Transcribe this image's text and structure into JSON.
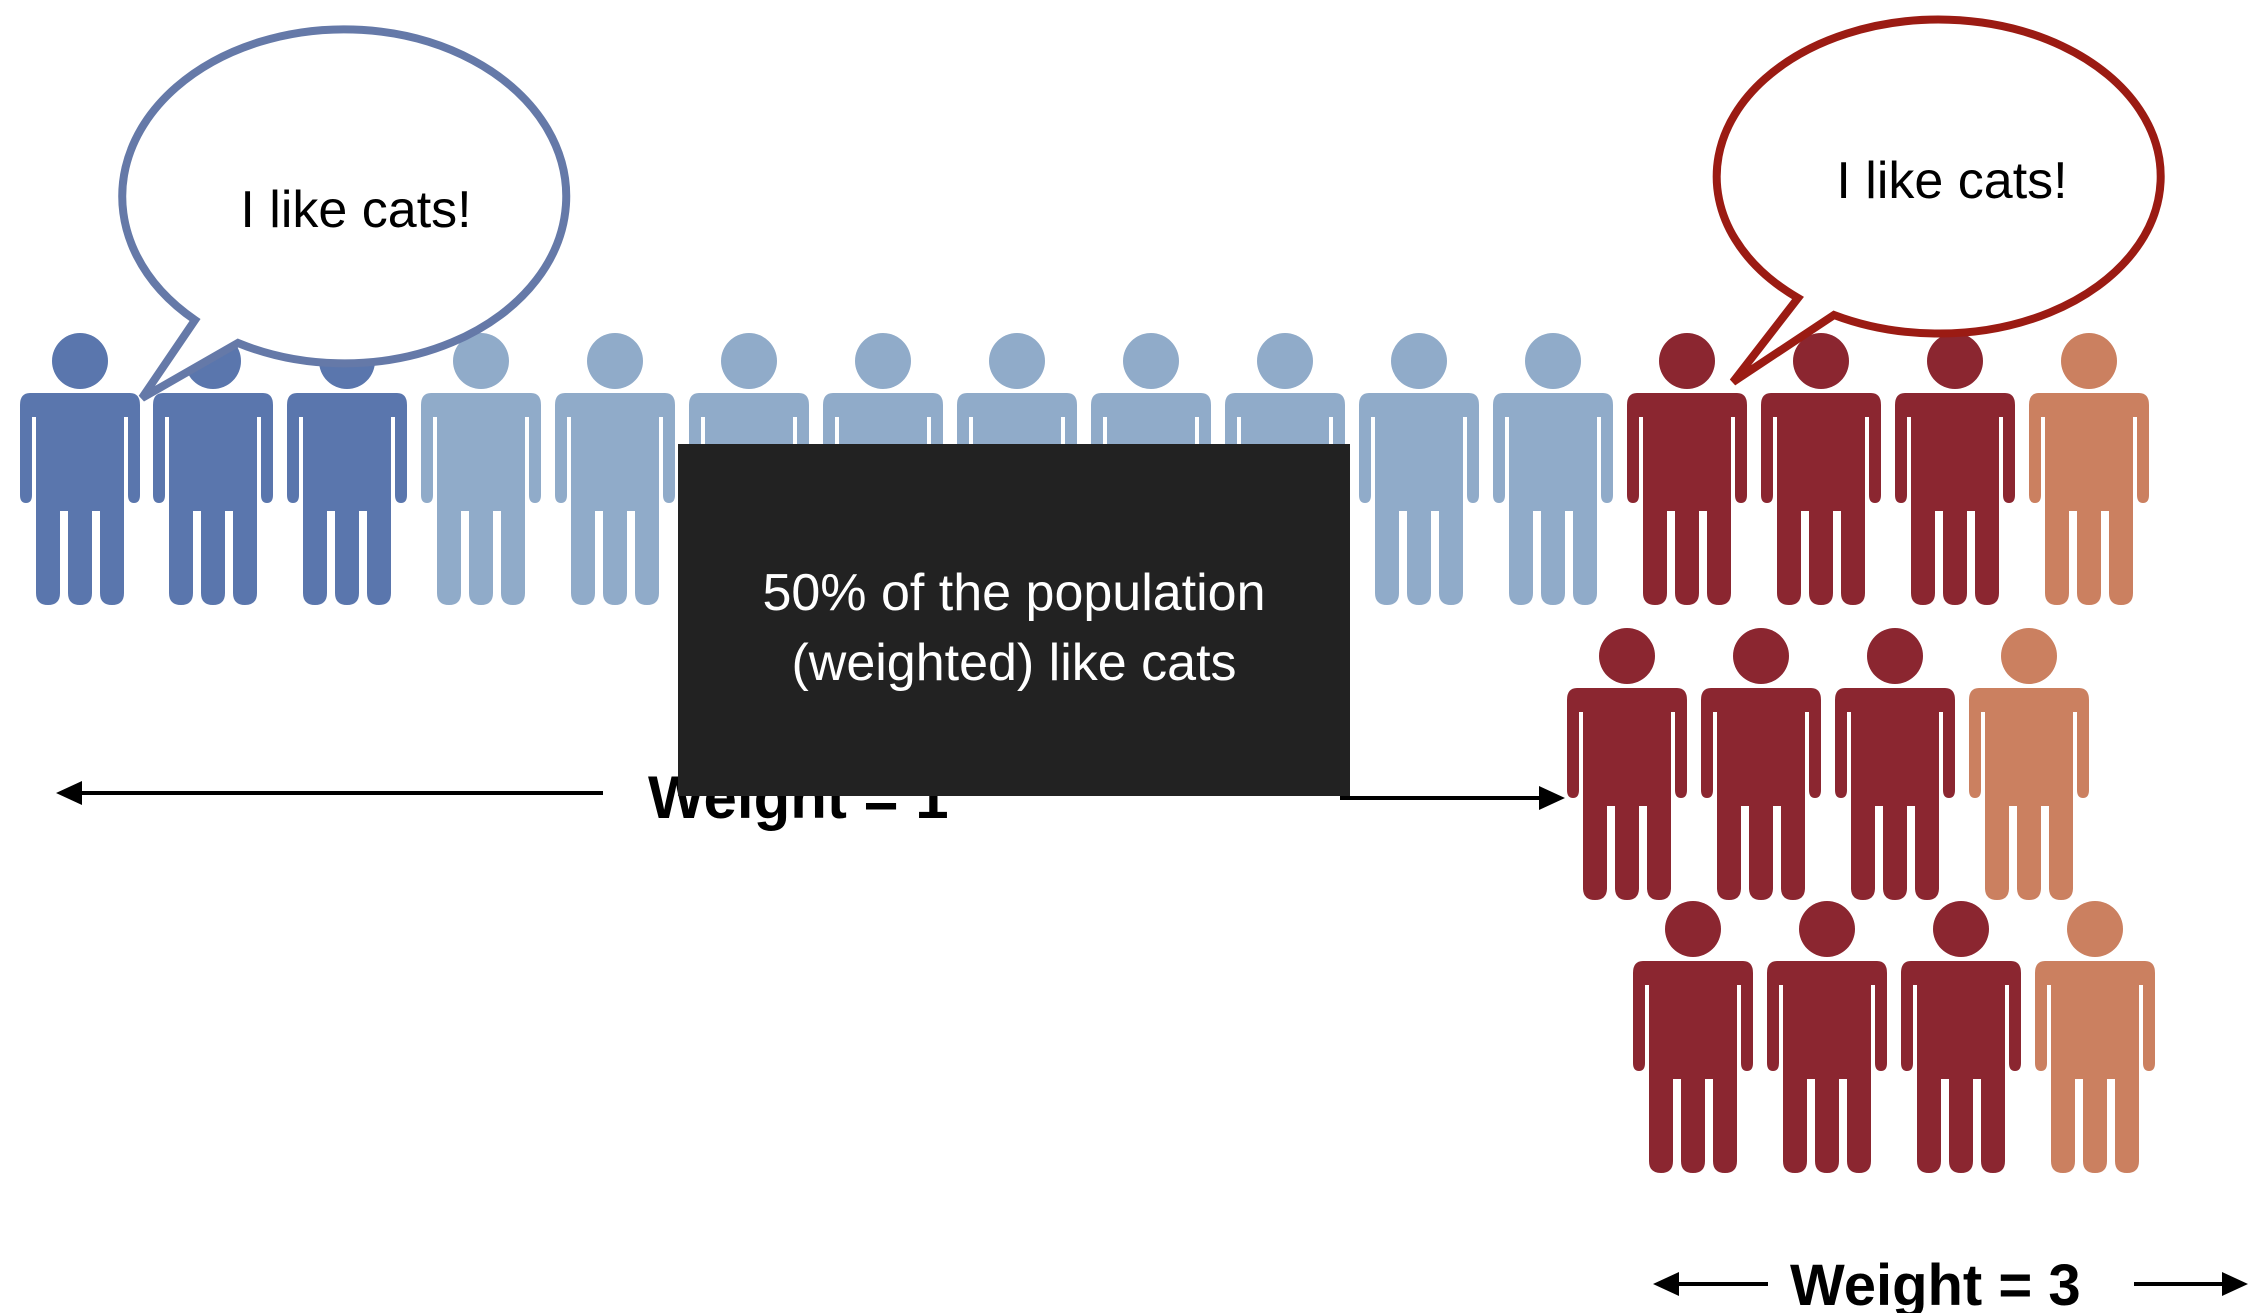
{
  "colors": {
    "blue_dark": "#5A76AD",
    "blue_light": "#90ABC9",
    "red_dark": "#8B2630",
    "red_orange": "#CB8060",
    "bubble_blue": "#6579A8",
    "bubble_red": "#9B1B13",
    "box_bg": "#222222"
  },
  "bubble_left": {
    "text": "I like cats!"
  },
  "bubble_right": {
    "text": "I like cats!"
  },
  "info_box": {
    "line1": "50% of the population",
    "line2": "(weighted) like cats"
  },
  "weight_left": {
    "label": "Weight = 1"
  },
  "weight_right": {
    "label": "Weight = 3"
  }
}
